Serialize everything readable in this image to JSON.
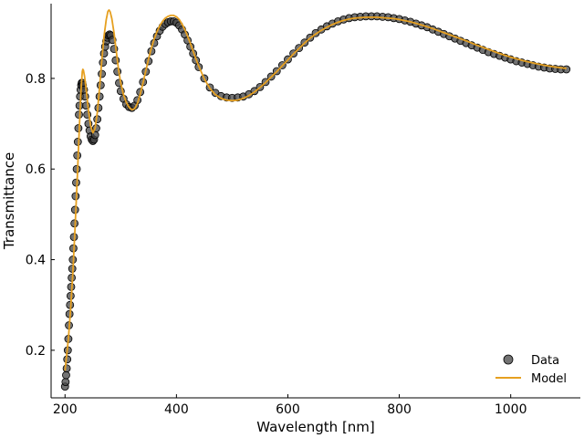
{
  "chart_data": {
    "type": "scatter",
    "title": "",
    "xlabel": "Wavelength [nm]",
    "ylabel": "Transmittance",
    "xlim": [
      175,
      1125
    ],
    "ylim": [
      0.095,
      0.965
    ],
    "xticks": [
      200,
      400,
      600,
      800,
      1000
    ],
    "xtick_labels": [
      "200",
      "400",
      "600",
      "800",
      "1000"
    ],
    "yticks": [
      0.2,
      0.4,
      0.6,
      0.8
    ],
    "ytick_labels": [
      "0.2",
      "0.4",
      "0.6",
      "0.8"
    ],
    "grid": false,
    "legend_position": "lower-right",
    "series": [
      {
        "name": "Data",
        "kind": "scatter",
        "color": "#444444",
        "points": [
          [
            200,
            0.12
          ],
          [
            201,
            0.13
          ],
          [
            202,
            0.145
          ],
          [
            203,
            0.16
          ],
          [
            204,
            0.18
          ],
          [
            205,
            0.2
          ],
          [
            206,
            0.225
          ],
          [
            207,
            0.255
          ],
          [
            208,
            0.28
          ],
          [
            209,
            0.3
          ],
          [
            210,
            0.32
          ],
          [
            211,
            0.34
          ],
          [
            212,
            0.36
          ],
          [
            213,
            0.38
          ],
          [
            214,
            0.4
          ],
          [
            215,
            0.425
          ],
          [
            216,
            0.45
          ],
          [
            217,
            0.48
          ],
          [
            218,
            0.51
          ],
          [
            219,
            0.54
          ],
          [
            220,
            0.57
          ],
          [
            221,
            0.6
          ],
          [
            222,
            0.63
          ],
          [
            223,
            0.66
          ],
          [
            224,
            0.69
          ],
          [
            225,
            0.72
          ],
          [
            226,
            0.74
          ],
          [
            227,
            0.76
          ],
          [
            228,
            0.775
          ],
          [
            229,
            0.785
          ],
          [
            230,
            0.79
          ],
          [
            231,
            0.79
          ],
          [
            232,
            0.785
          ],
          [
            234,
            0.775
          ],
          [
            236,
            0.76
          ],
          [
            238,
            0.74
          ],
          [
            240,
            0.72
          ],
          [
            242,
            0.7
          ],
          [
            244,
            0.685
          ],
          [
            246,
            0.672
          ],
          [
            248,
            0.665
          ],
          [
            250,
            0.662
          ],
          [
            252,
            0.665
          ],
          [
            254,
            0.675
          ],
          [
            256,
            0.69
          ],
          [
            258,
            0.71
          ],
          [
            260,
            0.735
          ],
          [
            262,
            0.76
          ],
          [
            264,
            0.785
          ],
          [
            266,
            0.81
          ],
          [
            268,
            0.835
          ],
          [
            270,
            0.855
          ],
          [
            272,
            0.87
          ],
          [
            274,
            0.882
          ],
          [
            276,
            0.89
          ],
          [
            278,
            0.895
          ],
          [
            280,
            0.897
          ],
          [
            282,
            0.895
          ],
          [
            285,
            0.885
          ],
          [
            288,
            0.865
          ],
          [
            291,
            0.84
          ],
          [
            294,
            0.815
          ],
          [
            297,
            0.79
          ],
          [
            300,
            0.772
          ],
          [
            305,
            0.755
          ],
          [
            310,
            0.743
          ],
          [
            315,
            0.737
          ],
          [
            320,
            0.735
          ],
          [
            325,
            0.74
          ],
          [
            330,
            0.752
          ],
          [
            335,
            0.77
          ],
          [
            340,
            0.792
          ],
          [
            345,
            0.815
          ],
          [
            350,
            0.838
          ],
          [
            355,
            0.86
          ],
          [
            360,
            0.878
          ],
          [
            365,
            0.893
          ],
          [
            370,
            0.905
          ],
          [
            375,
            0.914
          ],
          [
            380,
            0.92
          ],
          [
            385,
            0.924
          ],
          [
            390,
            0.926
          ],
          [
            395,
            0.926
          ],
          [
            400,
            0.923
          ],
          [
            405,
            0.917
          ],
          [
            410,
            0.908
          ],
          [
            415,
            0.897
          ],
          [
            420,
            0.884
          ],
          [
            425,
            0.87
          ],
          [
            430,
            0.855
          ],
          [
            435,
            0.84
          ],
          [
            440,
            0.825
          ],
          [
            450,
            0.8
          ],
          [
            460,
            0.78
          ],
          [
            470,
            0.768
          ],
          [
            480,
            0.761
          ],
          [
            490,
            0.758
          ],
          [
            500,
            0.757
          ],
          [
            510,
            0.758
          ],
          [
            520,
            0.76
          ],
          [
            530,
            0.765
          ],
          [
            540,
            0.772
          ],
          [
            550,
            0.781
          ],
          [
            560,
            0.792
          ],
          [
            570,
            0.804
          ],
          [
            580,
            0.816
          ],
          [
            590,
            0.829
          ],
          [
            600,
            0.842
          ],
          [
            610,
            0.855
          ],
          [
            620,
            0.867
          ],
          [
            630,
            0.879
          ],
          [
            640,
            0.89
          ],
          [
            650,
            0.9
          ],
          [
            660,
            0.908
          ],
          [
            670,
            0.915
          ],
          [
            680,
            0.921
          ],
          [
            690,
            0.926
          ],
          [
            700,
            0.93
          ],
          [
            710,
            0.933
          ],
          [
            720,
            0.935
          ],
          [
            730,
            0.936
          ],
          [
            740,
            0.937
          ],
          [
            750,
            0.937
          ],
          [
            760,
            0.937
          ],
          [
            770,
            0.936
          ],
          [
            780,
            0.935
          ],
          [
            790,
            0.933
          ],
          [
            800,
            0.931
          ],
          [
            810,
            0.928
          ],
          [
            820,
            0.925
          ],
          [
            830,
            0.921
          ],
          [
            840,
            0.917
          ],
          [
            850,
            0.913
          ],
          [
            860,
            0.908
          ],
          [
            870,
            0.903
          ],
          [
            880,
            0.898
          ],
          [
            890,
            0.893
          ],
          [
            900,
            0.888
          ],
          [
            910,
            0.883
          ],
          [
            920,
            0.878
          ],
          [
            930,
            0.873
          ],
          [
            940,
            0.868
          ],
          [
            950,
            0.863
          ],
          [
            960,
            0.858
          ],
          [
            970,
            0.854
          ],
          [
            980,
            0.85
          ],
          [
            990,
            0.846
          ],
          [
            1000,
            0.842
          ],
          [
            1010,
            0.838
          ],
          [
            1020,
            0.835
          ],
          [
            1030,
            0.832
          ],
          [
            1040,
            0.829
          ],
          [
            1050,
            0.826
          ],
          [
            1060,
            0.824
          ],
          [
            1070,
            0.822
          ],
          [
            1080,
            0.821
          ],
          [
            1090,
            0.82
          ],
          [
            1100,
            0.82
          ]
        ]
      },
      {
        "name": "Model",
        "kind": "line",
        "color": "#e6a020",
        "points": [
          [
            200,
            0.155
          ],
          [
            203,
            0.19
          ],
          [
            206,
            0.225
          ],
          [
            210,
            0.29
          ],
          [
            214,
            0.37
          ],
          [
            218,
            0.47
          ],
          [
            222,
            0.58
          ],
          [
            226,
            0.7
          ],
          [
            229,
            0.78
          ],
          [
            231,
            0.815
          ],
          [
            232,
            0.82
          ],
          [
            233,
            0.818
          ],
          [
            235,
            0.805
          ],
          [
            238,
            0.775
          ],
          [
            242,
            0.73
          ],
          [
            246,
            0.695
          ],
          [
            250,
            0.68
          ],
          [
            254,
            0.69
          ],
          [
            258,
            0.725
          ],
          [
            262,
            0.78
          ],
          [
            266,
            0.84
          ],
          [
            270,
            0.893
          ],
          [
            274,
            0.93
          ],
          [
            277,
            0.948
          ],
          [
            279,
            0.951
          ],
          [
            281,
            0.947
          ],
          [
            284,
            0.932
          ],
          [
            288,
            0.9
          ],
          [
            292,
            0.86
          ],
          [
            296,
            0.82
          ],
          [
            300,
            0.79
          ],
          [
            305,
            0.764
          ],
          [
            310,
            0.747
          ],
          [
            315,
            0.736
          ],
          [
            320,
            0.731
          ],
          [
            325,
            0.733
          ],
          [
            330,
            0.745
          ],
          [
            335,
            0.765
          ],
          [
            340,
            0.79
          ],
          [
            345,
            0.817
          ],
          [
            350,
            0.843
          ],
          [
            355,
            0.867
          ],
          [
            360,
            0.887
          ],
          [
            365,
            0.903
          ],
          [
            370,
            0.916
          ],
          [
            375,
            0.926
          ],
          [
            380,
            0.933
          ],
          [
            385,
            0.937
          ],
          [
            390,
            0.939
          ],
          [
            395,
            0.939
          ],
          [
            400,
            0.936
          ],
          [
            405,
            0.93
          ],
          [
            410,
            0.92
          ],
          [
            415,
            0.908
          ],
          [
            420,
            0.893
          ],
          [
            425,
            0.877
          ],
          [
            430,
            0.86
          ],
          [
            435,
            0.843
          ],
          [
            440,
            0.827
          ],
          [
            450,
            0.799
          ],
          [
            460,
            0.778
          ],
          [
            470,
            0.764
          ],
          [
            480,
            0.756
          ],
          [
            490,
            0.752
          ],
          [
            500,
            0.751
          ],
          [
            510,
            0.752
          ],
          [
            520,
            0.756
          ],
          [
            530,
            0.762
          ],
          [
            540,
            0.77
          ],
          [
            550,
            0.78
          ],
          [
            560,
            0.791
          ],
          [
            570,
            0.803
          ],
          [
            580,
            0.815
          ],
          [
            590,
            0.828
          ],
          [
            600,
            0.841
          ],
          [
            610,
            0.854
          ],
          [
            620,
            0.866
          ],
          [
            630,
            0.878
          ],
          [
            640,
            0.889
          ],
          [
            650,
            0.898
          ],
          [
            660,
            0.906
          ],
          [
            670,
            0.913
          ],
          [
            680,
            0.919
          ],
          [
            690,
            0.924
          ],
          [
            700,
            0.928
          ],
          [
            710,
            0.931
          ],
          [
            720,
            0.933
          ],
          [
            730,
            0.934
          ],
          [
            740,
            0.935
          ],
          [
            750,
            0.935
          ],
          [
            760,
            0.935
          ],
          [
            770,
            0.934
          ],
          [
            780,
            0.933
          ],
          [
            790,
            0.932
          ],
          [
            800,
            0.93
          ],
          [
            820,
            0.925
          ],
          [
            840,
            0.918
          ],
          [
            860,
            0.91
          ],
          [
            880,
            0.901
          ],
          [
            900,
            0.892
          ],
          [
            920,
            0.883
          ],
          [
            940,
            0.873
          ],
          [
            960,
            0.864
          ],
          [
            980,
            0.855
          ],
          [
            1000,
            0.847
          ],
          [
            1020,
            0.84
          ],
          [
            1040,
            0.834
          ],
          [
            1060,
            0.829
          ],
          [
            1080,
            0.825
          ],
          [
            1100,
            0.822
          ]
        ]
      }
    ]
  }
}
